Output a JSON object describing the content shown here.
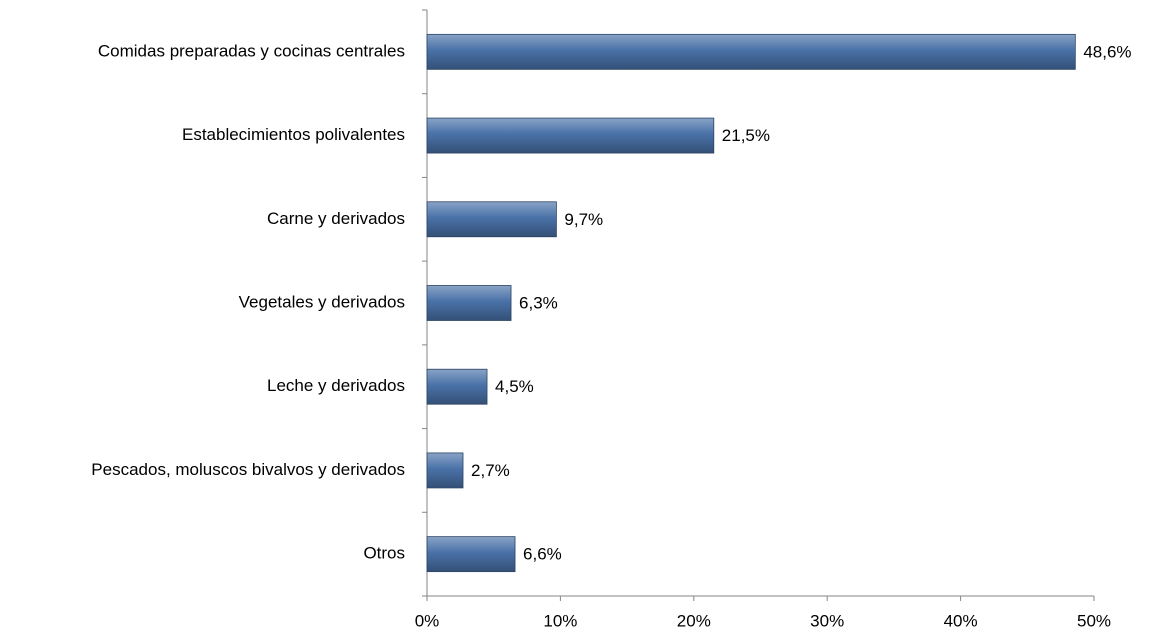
{
  "chart_data": {
    "type": "bar",
    "orientation": "horizontal",
    "categories": [
      "Comidas preparadas y cocinas centrales",
      "Establecimientos polivalentes",
      "Carne y derivados",
      "Vegetales y derivados",
      "Leche y derivados",
      "Pescados, moluscos bivalvos y derivados",
      "Otros"
    ],
    "values": [
      48.6,
      21.5,
      9.7,
      6.3,
      4.5,
      2.7,
      6.6
    ],
    "value_labels": [
      "48,6%",
      "21,5%",
      "9,7%",
      "6,3%",
      "4,5%",
      "2,7%",
      "6,6%"
    ],
    "color": "#4a72a8",
    "xlim": [
      0,
      50
    ],
    "xticks": [
      {
        "value": 0,
        "label": "0%"
      },
      {
        "value": 10,
        "label": "10%"
      },
      {
        "value": 20,
        "label": "20%"
      },
      {
        "value": 30,
        "label": "30%"
      },
      {
        "value": 40,
        "label": "40%"
      },
      {
        "value": 50,
        "label": "50%"
      }
    ],
    "grid": false
  }
}
